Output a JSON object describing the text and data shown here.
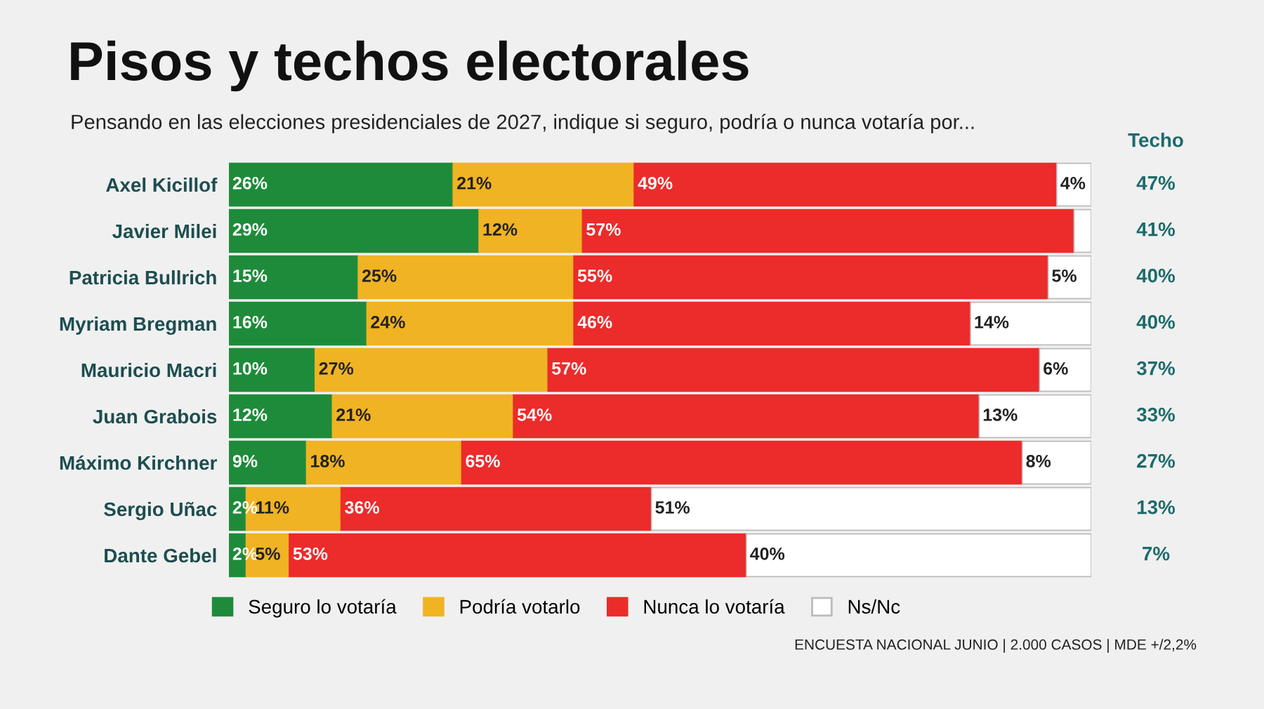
{
  "chart_data": {
    "type": "bar",
    "orientation": "horizontal",
    "stacked": true,
    "title": "Pisos y techos electorales",
    "subtitle": "Pensando en las elecciones presidenciales de 2027, indique si seguro, podría o nunca votaría por...",
    "categories": [
      "Axel Kicillof",
      "Javier Milei",
      "Patricia Bullrich",
      "Myriam Bregman",
      "Mauricio Macri",
      "Juan Grabois",
      "Máximo Kirchner",
      "Sergio Uñac",
      "Dante Gebel"
    ],
    "series": [
      {
        "name": "Seguro lo votaría",
        "color": "#1e8b3a",
        "values": [
          26,
          29,
          15,
          16,
          10,
          12,
          9,
          2,
          2
        ],
        "value_labels": [
          "26%",
          "29%",
          "15%",
          "16%",
          "10%",
          "12%",
          "9%",
          "2%",
          "2%"
        ]
      },
      {
        "name": "Podría votarlo",
        "color": "#f0b323",
        "values": [
          21,
          12,
          25,
          24,
          27,
          21,
          18,
          11,
          5
        ],
        "value_labels": [
          "21%",
          "12%",
          "25%",
          "24%",
          "27%",
          "21%",
          "18%",
          "11%",
          "5%"
        ]
      },
      {
        "name": "Nunca lo votaría",
        "color": "#ec2b2b",
        "values": [
          49,
          57,
          55,
          46,
          57,
          54,
          65,
          36,
          53
        ],
        "value_labels": [
          "49%",
          "57%",
          "55%",
          "46%",
          "57%",
          "54%",
          "65%",
          "36%",
          "53%"
        ]
      },
      {
        "name": "Ns/Nc",
        "color": "#ffffff",
        "values": [
          4,
          2,
          5,
          14,
          6,
          13,
          8,
          51,
          40
        ],
        "value_labels": [
          "4%",
          null,
          "5%",
          "14%",
          "6%",
          "13%",
          "8%",
          "51%",
          "40%"
        ]
      }
    ],
    "annotations": [
      "Techo",
      "47%",
      "41%",
      "40%",
      "40%",
      "37%",
      "33%",
      "27%",
      "13%",
      "7%",
      "ENCUESTA NACIONAL JUNIO | 2.000 CASOS | MDE +/2,2%"
    ],
    "legend": "bottom",
    "grid": false
  }
}
